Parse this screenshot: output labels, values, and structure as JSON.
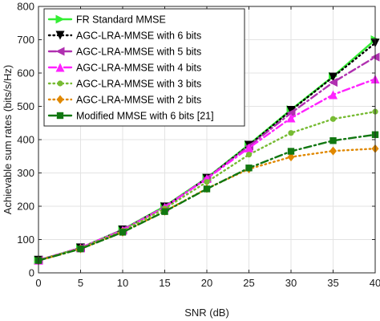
{
  "chart_data": {
    "type": "line",
    "xlabel": "SNR (dB)",
    "ylabel": "Achievable sum rates (bits/s/Hz)",
    "xlim": [
      0,
      40
    ],
    "ylim": [
      0,
      800
    ],
    "xticks": [
      "0",
      "5",
      "10",
      "15",
      "20",
      "25",
      "30",
      "35",
      "40"
    ],
    "yticks": [
      "0",
      "100",
      "200",
      "300",
      "400",
      "500",
      "600",
      "700",
      "800"
    ],
    "grid": true,
    "legend_position": "top-left",
    "x": [
      0,
      5,
      10,
      15,
      20,
      25,
      30,
      35,
      40
    ],
    "series": [
      {
        "name": "FR Standard MMSE",
        "color": "#33ee33",
        "marker": "triangle-right",
        "dash": "solid",
        "values": [
          38,
          75,
          130,
          200,
          285,
          385,
          490,
          590,
          700
        ]
      },
      {
        "name": "AGC-LRA-MMSE with 6 bits",
        "color": "#000000",
        "marker": "triangle-down",
        "dash": "dotted",
        "values": [
          38,
          75,
          129,
          198,
          284,
          383,
          488,
          588,
          690
        ]
      },
      {
        "name": "AGC-LRA-MMSE with 5 bits",
        "color": "#b030b0",
        "marker": "triangle-left",
        "dash": "dashdot",
        "values": [
          38,
          75,
          129,
          198,
          284,
          380,
          480,
          572,
          648
        ]
      },
      {
        "name": "AGC-LRA-MMSE with 4 bits",
        "color": "#ff22ff",
        "marker": "triangle-up",
        "dash": "dashdot",
        "values": [
          38,
          75,
          128,
          197,
          283,
          375,
          465,
          535,
          582
        ]
      },
      {
        "name": "AGC-LRA-MMSE with 3 bits",
        "color": "#77bb33",
        "marker": "circle",
        "dash": "dotted",
        "values": [
          38,
          74,
          126,
          193,
          273,
          355,
          420,
          462,
          484
        ]
      },
      {
        "name": "AGC-LRA-MMSE with 2 bits",
        "color": "#e08800",
        "marker": "diamond",
        "dash": "dotted",
        "values": [
          37,
          72,
          122,
          185,
          253,
          312,
          348,
          366,
          373
        ]
      },
      {
        "name": "Modified MMSE with 6 bits [21]",
        "color": "#117711",
        "marker": "square",
        "dash": "dashdot",
        "values": [
          37,
          72,
          122,
          184,
          252,
          315,
          365,
          397,
          415
        ]
      }
    ]
  }
}
